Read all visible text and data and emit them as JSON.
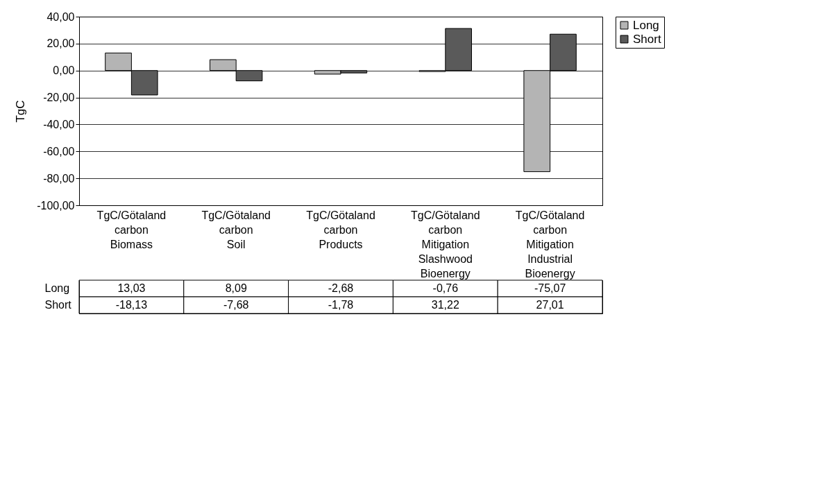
{
  "chart_data": {
    "type": "bar",
    "ylabel": "TgC",
    "categories": [
      "TgC/Götaland carbon Biomass",
      "TgC/Götaland carbon Soil",
      "TgC/Götaland carbon Products",
      "TgC/Götaland carbon Mitigation Slashwood Bioenergy",
      "TgC/Götaland carbon Mitigation Industrial Bioenergy"
    ],
    "series": [
      {
        "name": "Long",
        "color": "#b4b4b4",
        "values": [
          13.03,
          8.09,
          -2.68,
          -0.76,
          -75.07
        ],
        "value_labels": [
          "13,03",
          "8,09",
          "-2,68",
          "-0,76",
          "-75,07"
        ]
      },
      {
        "name": "Short",
        "color": "#5a5a5a",
        "values": [
          -18.13,
          -7.68,
          -1.78,
          31.22,
          27.01
        ],
        "value_labels": [
          "-18,13",
          "-7,68",
          "-1,78",
          "31,22",
          "27,01"
        ]
      }
    ],
    "ylim": [
      -100,
      40
    ],
    "yticks": [
      {
        "value": -100,
        "label": "-100,00"
      },
      {
        "value": -80,
        "label": "-80,00"
      },
      {
        "value": -60,
        "label": "-60,00"
      },
      {
        "value": -40,
        "label": "-40,00"
      },
      {
        "value": -20,
        "label": "-20,00"
      },
      {
        "value": 0,
        "label": "0,00"
      },
      {
        "value": 20,
        "label": "20,00"
      },
      {
        "value": 40,
        "label": "40,00"
      }
    ],
    "grid": "y",
    "legend": "right",
    "data_labels": true
  }
}
